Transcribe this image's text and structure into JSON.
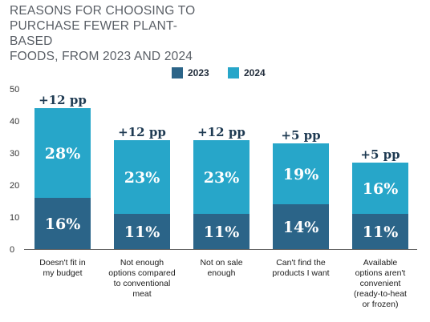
{
  "chart_data": {
    "type": "bar",
    "stacked": true,
    "title_lines": [
      "REASONS FOR CHOOSING TO",
      "PURCHASE FEWER PLANT-BASED",
      "FOODS, FROM 2023 AND 2024"
    ],
    "categories": [
      {
        "lines": [
          "Doesn't fit in",
          "my budget"
        ]
      },
      {
        "lines": [
          "Not enough",
          "options compared",
          "to conventional",
          "meat"
        ]
      },
      {
        "lines": [
          "Not on sale",
          "enough"
        ]
      },
      {
        "lines": [
          "Can't find the",
          "products I want"
        ]
      },
      {
        "lines": [
          "Available",
          "options aren't",
          "convenient",
          "(ready-to-heat",
          "or frozen)"
        ]
      }
    ],
    "series": [
      {
        "name": "2023",
        "color": "#2b6488",
        "values": [
          16,
          11,
          11,
          14,
          11
        ],
        "labels": [
          "16%",
          "11%",
          "11%",
          "14%",
          "11%"
        ]
      },
      {
        "name": "2024",
        "color": "#27a6c9",
        "values": [
          28,
          23,
          23,
          19,
          16
        ],
        "labels": [
          "28%",
          "23%",
          "23%",
          "19%",
          "16%"
        ]
      }
    ],
    "change_labels": [
      "+12 pp",
      "+12 pp",
      "+12 pp",
      "+5 pp",
      "+5 pp"
    ],
    "y_ticks": [
      0,
      10,
      20,
      30,
      40,
      50
    ],
    "ylim": [
      0,
      50
    ],
    "legend_position": "top-center",
    "grid": false
  }
}
